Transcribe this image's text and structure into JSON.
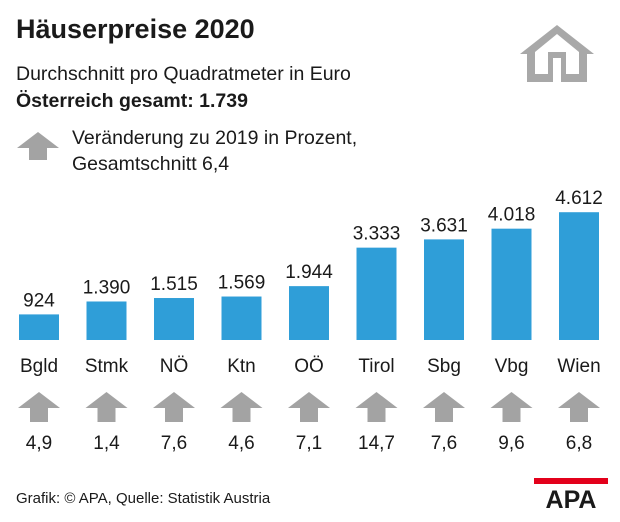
{
  "header": {
    "title": "Häuserpreise 2020",
    "subtitle": "Durchschnitt pro Quadratmeter in Euro",
    "total": "Österreich gesamt: 1.739"
  },
  "legend": {
    "line1": "Veränderung zu 2019 in Prozent,",
    "line2": "Gesamtschnitt 6,4"
  },
  "footer": {
    "source": "Grafik: © APA, Quelle: Statistik Austria",
    "logo_text": "APA"
  },
  "icons": {
    "house": "house-icon",
    "change_arrow": "arrow-up-icon"
  },
  "colors": {
    "bar": "#2f9ed8",
    "arrow": "#a3a3a3",
    "house": "#a8a8a8",
    "logo_bar": "#e3001b",
    "text": "#1a1a1a"
  },
  "chart_data": {
    "type": "bar",
    "categories": [
      "Bgld",
      "Stmk",
      "NÖ",
      "Ktn",
      "OÖ",
      "Tirol",
      "Sbg",
      "Vbg",
      "Wien"
    ],
    "values": [
      924,
      1390,
      1515,
      1569,
      1944,
      3333,
      3631,
      4018,
      4612
    ],
    "value_labels": [
      "924",
      "1.390",
      "1.515",
      "1.569",
      "1.944",
      "3.333",
      "3.631",
      "4.018",
      "4.612"
    ],
    "change_pct": [
      4.9,
      1.4,
      7.6,
      4.6,
      7.1,
      14.7,
      7.6,
      9.6,
      6.8
    ],
    "change_labels": [
      "4,9",
      "1,4",
      "7,6",
      "4,6",
      "7,1",
      "14,7",
      "7,6",
      "9,6",
      "6,8"
    ],
    "ylim": [
      0,
      4800
    ],
    "grid": false,
    "legend": "none"
  }
}
